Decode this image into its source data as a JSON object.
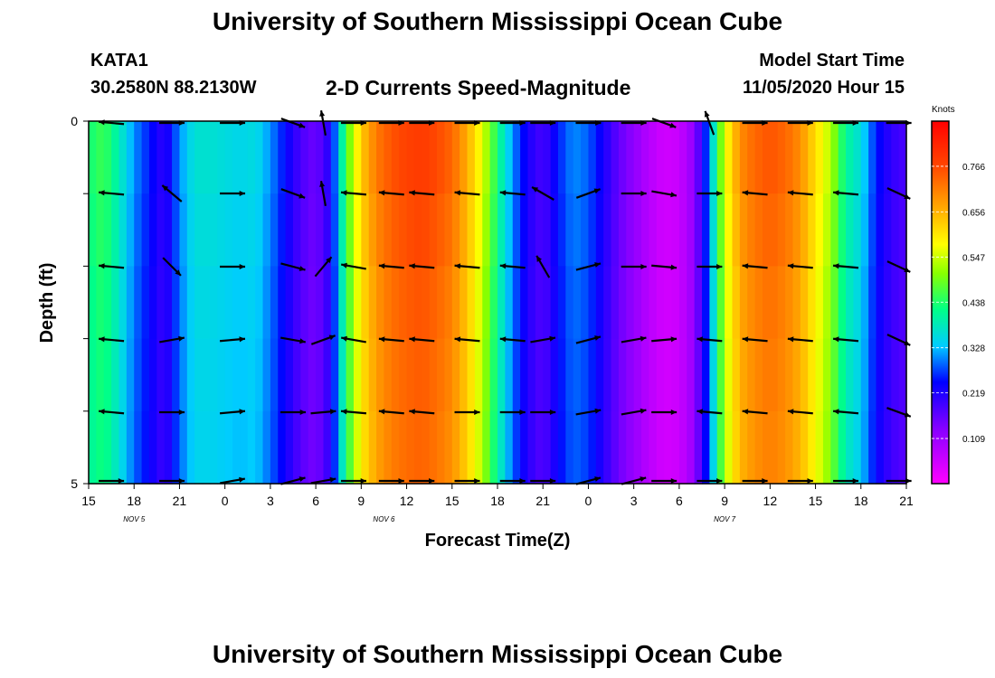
{
  "header": {
    "title": "University of Southern Mississippi Ocean Cube",
    "footer_title": "University of Southern Mississippi Ocean Cube",
    "station": "KATA1",
    "coords": "30.2580N 88.2130W",
    "subtitle": "2-D Currents Speed-Magnitude",
    "model_start_label": "Model Start Time",
    "model_start_value": "11/05/2020 Hour 15"
  },
  "chart_data": {
    "type": "heatmap",
    "title": "2-D Currents Speed-Magnitude",
    "xlabel": "Forecast Time(Z)",
    "ylabel": "Depth (ft)",
    "x_tick_labels": [
      "15",
      "18",
      "21",
      "0",
      "3",
      "6",
      "9",
      "12",
      "15",
      "18",
      "21",
      "0",
      "3",
      "6",
      "9",
      "12",
      "15",
      "18",
      "21"
    ],
    "date_labels": [
      {
        "text": "NOV  5",
        "at_tick": 1
      },
      {
        "text": "NOV  6",
        "at_tick": 6.5
      },
      {
        "text": "NOV  7",
        "at_tick": 14
      }
    ],
    "y_tick_labels": [
      "0",
      "5"
    ],
    "depth_range": [
      0,
      5
    ],
    "colorbar": {
      "unit": "Knots",
      "range": [
        0,
        0.875
      ],
      "ticks": [
        "0.766",
        "0.656",
        "0.547",
        "0.438",
        "0.328",
        "0.219",
        "0.109"
      ],
      "tick_values": [
        0.766,
        0.656,
        0.547,
        0.438,
        0.328,
        0.219,
        0.109
      ]
    },
    "speed_profile_by_hour": [
      [
        0,
        0.42
      ],
      [
        1,
        0.45
      ],
      [
        2,
        0.38
      ],
      [
        3,
        0.3
      ],
      [
        4,
        0.25
      ],
      [
        5,
        0.2
      ],
      [
        6,
        0.3
      ],
      [
        7,
        0.36
      ],
      [
        8,
        0.36
      ],
      [
        9,
        0.35
      ],
      [
        10,
        0.34
      ],
      [
        11,
        0.35
      ],
      [
        12,
        0.3
      ],
      [
        13,
        0.24
      ],
      [
        14,
        0.18
      ],
      [
        15,
        0.15
      ],
      [
        16,
        0.22
      ],
      [
        17,
        0.45
      ],
      [
        18,
        0.62
      ],
      [
        19,
        0.7
      ],
      [
        20,
        0.74
      ],
      [
        21,
        0.76
      ],
      [
        22,
        0.77
      ],
      [
        23,
        0.75
      ],
      [
        24,
        0.72
      ],
      [
        25,
        0.65
      ],
      [
        26,
        0.55
      ],
      [
        27,
        0.42
      ],
      [
        28,
        0.3
      ],
      [
        29,
        0.22
      ],
      [
        30,
        0.18
      ],
      [
        31,
        0.25
      ],
      [
        32,
        0.3
      ],
      [
        33,
        0.28
      ],
      [
        34,
        0.22
      ],
      [
        35,
        0.16
      ],
      [
        36,
        0.12
      ],
      [
        37,
        0.08
      ],
      [
        38,
        0.05
      ],
      [
        39,
        0.06
      ],
      [
        40,
        0.12
      ],
      [
        41,
        0.3
      ],
      [
        42,
        0.55
      ],
      [
        43,
        0.68
      ],
      [
        44,
        0.72
      ],
      [
        45,
        0.74
      ],
      [
        46,
        0.72
      ],
      [
        47,
        0.68
      ],
      [
        48,
        0.6
      ],
      [
        49,
        0.52
      ],
      [
        50,
        0.4
      ],
      [
        51,
        0.35
      ],
      [
        52,
        0.25
      ],
      [
        53,
        0.2
      ],
      [
        54,
        0.18
      ]
    ],
    "vector_columns_hours": [
      1.5,
      5.5,
      9.5,
      13.5,
      15.5,
      17.5,
      20,
      22,
      25,
      28,
      30,
      33,
      36,
      38,
      41,
      44,
      47,
      50,
      53.5
    ],
    "vector_angles_deg_by_row": [
      [
        175,
        0,
        0,
        -20,
        100,
        0,
        0,
        0,
        0,
        0,
        0,
        0,
        0,
        -20,
        110,
        0,
        0,
        0,
        0
      ],
      [
        175,
        140,
        0,
        -20,
        100,
        175,
        175,
        175,
        175,
        175,
        150,
        20,
        0,
        -10,
        0,
        175,
        175,
        175,
        -25
      ],
      [
        175,
        -45,
        0,
        -15,
        50,
        170,
        175,
        175,
        175,
        175,
        120,
        15,
        0,
        -5,
        0,
        175,
        175,
        175,
        -25
      ],
      [
        175,
        10,
        5,
        -10,
        20,
        170,
        175,
        175,
        175,
        175,
        10,
        15,
        10,
        5,
        175,
        175,
        175,
        175,
        -25
      ],
      [
        175,
        0,
        5,
        0,
        5,
        175,
        175,
        175,
        0,
        0,
        0,
        10,
        10,
        0,
        175,
        175,
        175,
        175,
        -20
      ],
      [
        0,
        0,
        10,
        15,
        10,
        0,
        0,
        0,
        0,
        0,
        0,
        15,
        15,
        0,
        0,
        0,
        0,
        0,
        0
      ]
    ]
  }
}
